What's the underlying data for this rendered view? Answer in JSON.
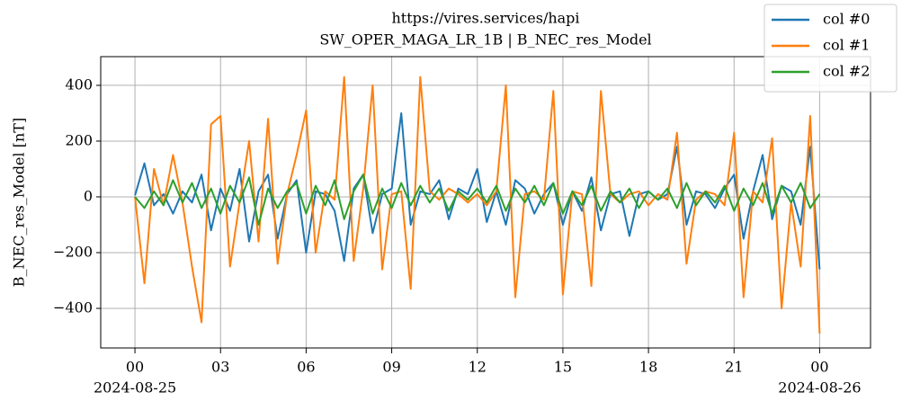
{
  "chart_data": {
    "type": "line",
    "title": "https://vires.services/hapi",
    "subtitle": "SW_OPER_MAGA_LR_1B | B_NEC_res_Model",
    "ylabel": "B_NEC_res_Model [nT]",
    "x": [
      "2024-08-25 00:00",
      "2024-08-25 00:20",
      "2024-08-25 00:40",
      "2024-08-25 01:00",
      "2024-08-25 01:20",
      "2024-08-25 01:40",
      "2024-08-25 02:00",
      "2024-08-25 02:20",
      "2024-08-25 02:40",
      "2024-08-25 03:00",
      "2024-08-25 03:20",
      "2024-08-25 03:40",
      "2024-08-25 04:00",
      "2024-08-25 04:20",
      "2024-08-25 04:40",
      "2024-08-25 05:00",
      "2024-08-25 05:20",
      "2024-08-25 05:40",
      "2024-08-25 06:00",
      "2024-08-25 06:20",
      "2024-08-25 06:40",
      "2024-08-25 07:00",
      "2024-08-25 07:20",
      "2024-08-25 07:40",
      "2024-08-25 08:00",
      "2024-08-25 08:20",
      "2024-08-25 08:40",
      "2024-08-25 09:00",
      "2024-08-25 09:20",
      "2024-08-25 09:40",
      "2024-08-25 10:00",
      "2024-08-25 10:20",
      "2024-08-25 10:40",
      "2024-08-25 11:00",
      "2024-08-25 11:20",
      "2024-08-25 11:40",
      "2024-08-25 12:00",
      "2024-08-25 12:20",
      "2024-08-25 12:40",
      "2024-08-25 13:00",
      "2024-08-25 13:20",
      "2024-08-25 13:40",
      "2024-08-25 14:00",
      "2024-08-25 14:20",
      "2024-08-25 14:40",
      "2024-08-25 15:00",
      "2024-08-25 15:20",
      "2024-08-25 15:40",
      "2024-08-25 16:00",
      "2024-08-25 16:20",
      "2024-08-25 16:40",
      "2024-08-25 17:00",
      "2024-08-25 17:20",
      "2024-08-25 17:40",
      "2024-08-25 18:00",
      "2024-08-25 18:20",
      "2024-08-25 18:40",
      "2024-08-25 19:00",
      "2024-08-25 19:20",
      "2024-08-25 19:40",
      "2024-08-25 20:00",
      "2024-08-25 20:20",
      "2024-08-25 20:40",
      "2024-08-25 21:00",
      "2024-08-25 21:20",
      "2024-08-25 21:40",
      "2024-08-25 22:00",
      "2024-08-25 22:20",
      "2024-08-25 22:40",
      "2024-08-25 23:00",
      "2024-08-25 23:20",
      "2024-08-25 23:40",
      "2024-08-26 00:00"
    ],
    "series": [
      {
        "name": "col #0",
        "color": "#1f77b4",
        "values": [
          5,
          120,
          -30,
          10,
          -60,
          20,
          -20,
          80,
          -120,
          30,
          -50,
          100,
          -160,
          20,
          80,
          -150,
          10,
          60,
          -200,
          20,
          10,
          -50,
          -230,
          30,
          80,
          -130,
          10,
          30,
          300,
          -100,
          20,
          10,
          60,
          -80,
          30,
          10,
          100,
          -90,
          20,
          -100,
          60,
          30,
          -60,
          10,
          50,
          -100,
          20,
          -50,
          70,
          -120,
          10,
          20,
          -140,
          10,
          20,
          -10,
          10,
          180,
          -100,
          20,
          10,
          -40,
          30,
          80,
          -150,
          20,
          150,
          -80,
          40,
          20,
          -100,
          180,
          -260
        ]
      },
      {
        "name": "col #1",
        "color": "#ff7f0e",
        "values": [
          0,
          -310,
          100,
          -30,
          150,
          -20,
          -250,
          -450,
          260,
          290,
          -250,
          -20,
          200,
          -160,
          280,
          -240,
          10,
          150,
          310,
          -200,
          20,
          -10,
          430,
          -230,
          30,
          400,
          -260,
          10,
          20,
          -330,
          430,
          20,
          -10,
          30,
          10,
          -20,
          10,
          -30,
          20,
          400,
          -360,
          10,
          20,
          -10,
          380,
          -350,
          20,
          10,
          -320,
          380,
          10,
          -20,
          10,
          20,
          -30,
          10,
          -10,
          230,
          -240,
          -10,
          20,
          10,
          -30,
          230,
          -360,
          20,
          -20,
          210,
          -400,
          -20,
          -250,
          290,
          -490
        ]
      },
      {
        "name": "col #2",
        "color": "#2ca02c",
        "values": [
          0,
          -40,
          20,
          -30,
          60,
          -20,
          50,
          -40,
          30,
          -60,
          40,
          -20,
          70,
          -100,
          30,
          -40,
          20,
          50,
          -60,
          40,
          -30,
          60,
          -80,
          20,
          80,
          -60,
          30,
          -40,
          50,
          -30,
          40,
          -20,
          30,
          -50,
          20,
          -10,
          30,
          -20,
          40,
          -50,
          30,
          -20,
          40,
          -30,
          50,
          -60,
          20,
          -30,
          40,
          -50,
          20,
          -20,
          30,
          -40,
          20,
          -10,
          30,
          -40,
          50,
          -30,
          20,
          -20,
          40,
          -50,
          30,
          -30,
          50,
          -60,
          40,
          -20,
          50,
          -40,
          10
        ]
      }
    ],
    "xlim": [
      "2024-08-24 22:48",
      "2024-08-26 01:47"
    ],
    "xticks": [
      {
        "value": "2024-08-25 00:00",
        "label": "00"
      },
      {
        "value": "2024-08-25 03:00",
        "label": "03"
      },
      {
        "value": "2024-08-25 06:00",
        "label": "06"
      },
      {
        "value": "2024-08-25 09:00",
        "label": "09"
      },
      {
        "value": "2024-08-25 12:00",
        "label": "12"
      },
      {
        "value": "2024-08-25 15:00",
        "label": "15"
      },
      {
        "value": "2024-08-25 18:00",
        "label": "18"
      },
      {
        "value": "2024-08-25 21:00",
        "label": "21"
      },
      {
        "value": "2024-08-26 00:00",
        "label": "00"
      }
    ],
    "xtick_sublabels": [
      {
        "value": "2024-08-25 00:00",
        "label": "2024-08-25"
      },
      {
        "value": "2024-08-26 00:00",
        "label": "2024-08-26"
      }
    ],
    "ylim": [
      -542,
      503
    ],
    "yticks": [
      {
        "value": -400,
        "label": "−400"
      },
      {
        "value": -200,
        "label": "−200"
      },
      0,
      200,
      400
    ],
    "grid": true,
    "legend": "upper right"
  }
}
